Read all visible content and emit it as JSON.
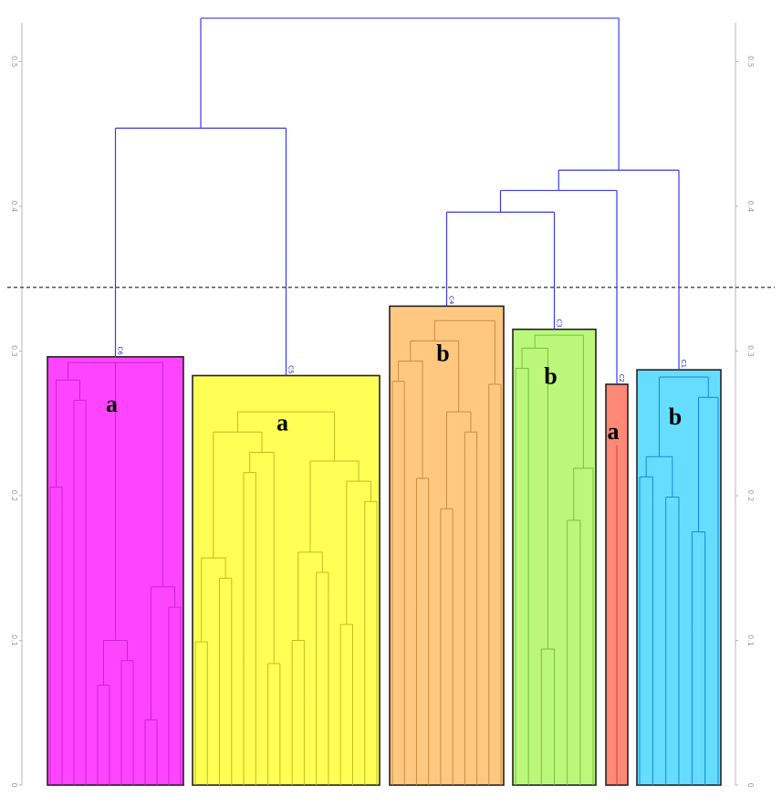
{
  "chart_data": {
    "type": "dendrogram",
    "ylim": [
      0,
      0.53
    ],
    "y_ticks": [
      "0",
      "0.1",
      "0.2",
      "0.3",
      "0.4",
      "0.5"
    ],
    "cut_height": 0.344,
    "colors": {
      "upper_links": "#3a3ae6",
      "axis": "#b5b5b5",
      "cut_line": "#555555"
    },
    "clusters": [
      {
        "name": "C6",
        "group": "a",
        "height": 0.296,
        "color": "#ff44ff",
        "edge": "#cc22cc",
        "leaf_heights": [
          0.118,
          0.192,
          0.252,
          0.076,
          0.04,
          0.055,
          0.033,
          0.072,
          0.027,
          0.031,
          0.043,
          0.109
        ]
      },
      {
        "name": "C5",
        "group": "a",
        "height": 0.283,
        "color": "#ffff55",
        "edge": "#bdbd22",
        "leaf_heights": [
          0.074,
          0.085,
          0.112,
          0.129,
          0.084,
          0.202,
          0.07,
          0.052,
          0.086,
          0.057,
          0.072,
          0.133,
          0.097,
          0.068,
          0.182,
          0.125
        ]
      },
      {
        "name": "C4",
        "group": "b",
        "height": 0.331,
        "color": "#ffc880",
        "edge": "#cc8a40",
        "leaf_heights": [
          0.233,
          0.265,
          0.126,
          0.198,
          0.126,
          0.177,
          0.23,
          0.154,
          0.263,
          0.167
        ]
      },
      {
        "name": "C3",
        "group": "b",
        "height": 0.315,
        "color": "#bbf77a",
        "edge": "#7ac040",
        "leaf_heights": [
          0.232,
          0.274,
          0.064,
          0.08,
          0.114,
          0.169,
          0.205
        ]
      },
      {
        "name": "C2",
        "group": "a",
        "height": 0.277,
        "color": "#ff8877",
        "edge": "#cc4433",
        "leaf_heights": [
          0.235
        ]
      },
      {
        "name": "C1",
        "group": "b",
        "height": 0.287,
        "color": "#66ddff",
        "edge": "#1188dd",
        "leaf_heights": [
          0.152,
          0.199,
          0.15,
          0.185,
          0.108,
          0.161,
          0.254
        ]
      }
    ],
    "merges": [
      {
        "left": "C6",
        "right": "C5",
        "height": 0.454
      },
      {
        "left": "C4",
        "right": "C3",
        "height": 0.396
      },
      {
        "left": "C4+C3",
        "right": "C2",
        "height": 0.411
      },
      {
        "left": "C4+C3+C2",
        "right": "C1",
        "height": 0.425
      },
      {
        "left": "C6+C5",
        "right": "C4+C3+C2+C1",
        "height": 0.53
      }
    ]
  }
}
